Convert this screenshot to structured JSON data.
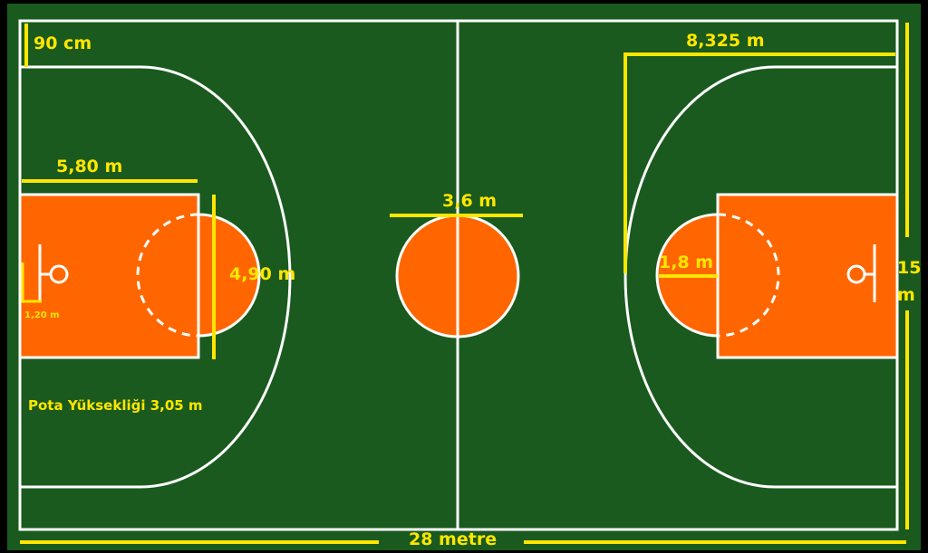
{
  "colors": {
    "background": "#000000",
    "court": "#1a5a1e",
    "paint": "#ff6600",
    "lines": "#ffffff",
    "dimension": "#ffe600"
  },
  "labels": {
    "corner_three_gap": "90 cm",
    "three_point_depth": "8,325 m",
    "free_throw_line_distance": "5,80 m",
    "center_circle_diameter": "3,6 m",
    "key_width": "4,90 m",
    "free_throw_circle_radius": "1,8 m",
    "court_width_part1": "15",
    "court_width_part2": "m",
    "backboard_distance": "1,20 m",
    "rim_height": "Pota Yüksekliği 3,05 m",
    "court_length": "28 metre"
  }
}
